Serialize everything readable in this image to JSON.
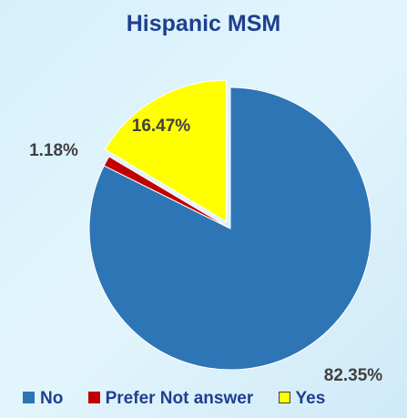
{
  "chart_data": {
    "type": "pie",
    "title": "Hispanic MSM",
    "slices": [
      {
        "label": "No",
        "value": 82.35,
        "display": "82.35%",
        "color": "#2e75b6"
      },
      {
        "label": "Prefer Not answer",
        "value": 1.18,
        "display": "1.18%",
        "color": "#c00000"
      },
      {
        "label": "Yes",
        "value": 16.47,
        "display": "16.47%",
        "color": "#ffff00"
      }
    ],
    "legend_position": "bottom",
    "exploded_slice": "Yes"
  }
}
